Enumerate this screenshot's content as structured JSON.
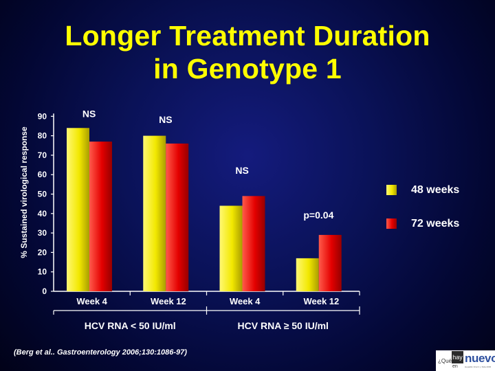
{
  "slide": {
    "title_line1": "Longer Treatment Duration",
    "title_line2": "in Genotype 1",
    "citation": "(Berg et al.. Gastroenterology 2006;130:1086-97)"
  },
  "logo": {
    "que": "¿Qué",
    "hay": "hay",
    "en": "en",
    "nuevo": "nuevo",
    "subtitle": "Hepatitis Viral C y Sida 2006"
  },
  "colors": {
    "background": "#03093f",
    "yellow_series": "#f2e800",
    "red_series": "#e40000",
    "title": "#ffff00",
    "text": "#ffffff"
  },
  "chart_data": {
    "type": "bar",
    "ylabel": "% Sustained virological response",
    "ylim": [
      0,
      90
    ],
    "yticks": [
      0,
      10,
      20,
      30,
      40,
      50,
      60,
      70,
      80,
      90
    ],
    "categories": [
      "Week 4",
      "Week 12",
      "Week 4",
      "Week 12"
    ],
    "groups": [
      {
        "label": "HCV RNA < 50 IU/ml",
        "categories": [
          "Week 4",
          "Week 12"
        ]
      },
      {
        "label": "HCV RNA ≥ 50 IU/ml",
        "categories": [
          "Week 4",
          "Week 12"
        ]
      }
    ],
    "series": [
      {
        "name": "48 weeks",
        "values": [
          84,
          80,
          44,
          17
        ],
        "color": "#f2e800"
      },
      {
        "name": "72 weeks",
        "values": [
          77,
          76,
          49,
          29
        ],
        "color": "#e40000"
      }
    ],
    "annotations": [
      "NS",
      "NS",
      "NS",
      "p=0.04"
    ],
    "legend_position": "right",
    "grid": false
  }
}
